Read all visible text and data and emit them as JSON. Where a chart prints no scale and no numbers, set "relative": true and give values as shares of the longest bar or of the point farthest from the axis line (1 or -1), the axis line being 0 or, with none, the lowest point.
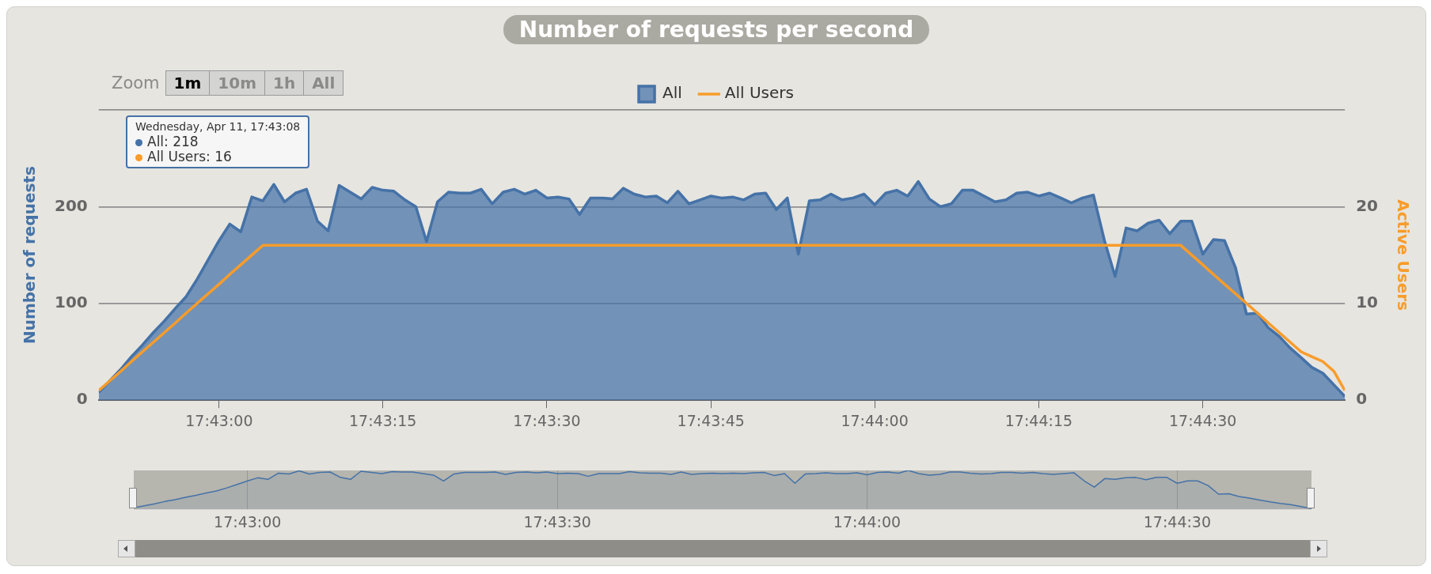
{
  "chart_data": [
    {
      "type": "area",
      "title": "Number of requests per second",
      "ylabel": "Number of requests",
      "y2label": "Active Users",
      "x": [
        17.71361,
        17.71389,
        17.71417,
        17.71444,
        17.71472,
        17.715,
        17.71528,
        17.71556,
        17.71583,
        17.71611,
        17.71639,
        17.71667,
        17.71694,
        17.71722,
        17.7175,
        17.71778,
        17.71806,
        17.71833,
        17.71861,
        17.71889,
        17.71917,
        17.71944,
        17.71972,
        17.72,
        17.72028,
        17.72056,
        17.72083,
        17.72111,
        17.72139,
        17.72167,
        17.72194,
        17.72222,
        17.7225,
        17.72278,
        17.72306,
        17.72333,
        17.72361,
        17.72389,
        17.72417,
        17.72444,
        17.72472,
        17.725,
        17.72528,
        17.72556,
        17.72583,
        17.72611,
        17.72639,
        17.72667,
        17.72694,
        17.72722,
        17.7275,
        17.72778,
        17.72806,
        17.72833,
        17.72861,
        17.72889,
        17.72917,
        17.72944,
        17.72972,
        17.73,
        17.73028,
        17.73056,
        17.73083,
        17.73111,
        17.73139,
        17.73167,
        17.73194,
        17.73222,
        17.7325,
        17.73278,
        17.73306,
        17.73333,
        17.73361,
        17.73389,
        17.73417,
        17.73444,
        17.73472,
        17.735,
        17.73528,
        17.73556,
        17.73583,
        17.73611,
        17.73639,
        17.73667,
        17.73694,
        17.73722,
        17.7375,
        17.73778,
        17.73806,
        17.73833,
        17.73861,
        17.73889,
        17.73917,
        17.73944,
        17.73972,
        17.74,
        17.74028,
        17.74056,
        17.74083,
        17.74111,
        17.74139,
        17.74167,
        17.74194,
        17.74222,
        17.7425,
        17.74278,
        17.74306,
        17.74333,
        17.74361,
        17.74389,
        17.74417,
        17.74444,
        17.74472,
        17.745,
        17.74528
      ],
      "xlim": [
        17.71361,
        17.74528
      ],
      "xticks": [
        {
          "value": 17.71667,
          "label": "17:43:00"
        },
        {
          "value": 17.72083,
          "label": "17:43:15"
        },
        {
          "value": 17.725,
          "label": "17:43:30"
        },
        {
          "value": 17.72917,
          "label": "17:43:45"
        },
        {
          "value": 17.73333,
          "label": "17:44:00"
        },
        {
          "value": 17.7375,
          "label": "17:44:15"
        },
        {
          "value": 17.74167,
          "label": "17:44:30"
        }
      ],
      "ylim": [
        0,
        300
      ],
      "yticks": [
        0,
        100,
        200,
        {
          "value": 300,
          "label": null
        }
      ],
      "y2lim": [
        0,
        30
      ],
      "y2ticks": [
        0,
        10,
        20,
        {
          "value": 30,
          "label": null
        }
      ],
      "series": [
        {
          "name": "All",
          "color": "#4572a7",
          "values": [
            8,
            20,
            32,
            45,
            57,
            70,
            82,
            95,
            107,
            125,
            145,
            165,
            182,
            174,
            210,
            206,
            223,
            205,
            214,
            218,
            185,
            175,
            222,
            215,
            208,
            220,
            217,
            216,
            207,
            200,
            164,
            205,
            215,
            214,
            214,
            218,
            203,
            215,
            218,
            213,
            217,
            209,
            210,
            208,
            192,
            209,
            209,
            208,
            219,
            213,
            210,
            211,
            204,
            216,
            203,
            207,
            211,
            209,
            210,
            207,
            213,
            214,
            197,
            209,
            151,
            206,
            207,
            213,
            207,
            209,
            213,
            202,
            214,
            217,
            211,
            226,
            208,
            200,
            203,
            217,
            217,
            211,
            205,
            207,
            214,
            215,
            211,
            214,
            209,
            204,
            209,
            212,
            165,
            128,
            178,
            175,
            183,
            186,
            172,
            185,
            185,
            151,
            166,
            165,
            137,
            89,
            90,
            75,
            66,
            54,
            44,
            34,
            28,
            16,
            4
          ]
        },
        {
          "name": "All Users",
          "type": "line",
          "axis": "y2",
          "color": "#f89c2a",
          "values": [
            1,
            2,
            3,
            4,
            5,
            6,
            7,
            8,
            9,
            10,
            11,
            12,
            13,
            14,
            15,
            16,
            16,
            16,
            16,
            16,
            16,
            16,
            16,
            16,
            16,
            16,
            16,
            16,
            16,
            16,
            16,
            16,
            16,
            16,
            16,
            16,
            16,
            16,
            16,
            16,
            16,
            16,
            16,
            16,
            16,
            16,
            16,
            16,
            16,
            16,
            16,
            16,
            16,
            16,
            16,
            16,
            16,
            16,
            16,
            16,
            16,
            16,
            16,
            16,
            16,
            16,
            16,
            16,
            16,
            16,
            16,
            16,
            16,
            16,
            16,
            16,
            16,
            16,
            16,
            16,
            16,
            16,
            16,
            16,
            16,
            16,
            16,
            16,
            16,
            16,
            16,
            16,
            16,
            16,
            16,
            16,
            16,
            16,
            16,
            16,
            15,
            14,
            13,
            12,
            11,
            10,
            9,
            8,
            7,
            6,
            5,
            4.5,
            4,
            3,
            1
          ]
        }
      ],
      "grid": "y",
      "legend": "top",
      "marker": "none",
      "line_style": "solid",
      "annotations": [
        "Wednesday, Apr 11, 17:43:08",
        "All: 218",
        "All Users: 16",
        "Zoom",
        "1m",
        "10m",
        "1h",
        "All"
      ]
    },
    {
      "type": "area",
      "x": [
        17.71361,
        17.71389,
        17.71417,
        17.71444,
        17.71472,
        17.715,
        17.71528,
        17.71556,
        17.71583,
        17.71611,
        17.71639,
        17.71667,
        17.71694,
        17.71722,
        17.7175,
        17.71778,
        17.71806,
        17.71833,
        17.71861,
        17.71889,
        17.71917,
        17.71944,
        17.71972,
        17.72,
        17.72028,
        17.72056,
        17.72083,
        17.72111,
        17.72139,
        17.72167,
        17.72194,
        17.72222,
        17.7225,
        17.72278,
        17.72306,
        17.72333,
        17.72361,
        17.72389,
        17.72417,
        17.72444,
        17.72472,
        17.725,
        17.72528,
        17.72556,
        17.72583,
        17.72611,
        17.72639,
        17.72667,
        17.72694,
        17.72722,
        17.7275,
        17.72778,
        17.72806,
        17.72833,
        17.72861,
        17.72889,
        17.72917,
        17.72944,
        17.72972,
        17.73,
        17.73028,
        17.73056,
        17.73083,
        17.73111,
        17.73139,
        17.73167,
        17.73194,
        17.73222,
        17.7325,
        17.73278,
        17.73306,
        17.73333,
        17.73361,
        17.73389,
        17.73417,
        17.73444,
        17.73472,
        17.735,
        17.73528,
        17.73556,
        17.73583,
        17.73611,
        17.73639,
        17.73667,
        17.73694,
        17.73722,
        17.7375,
        17.73778,
        17.73806,
        17.73833,
        17.73861,
        17.73889,
        17.73917,
        17.73944,
        17.73972,
        17.74,
        17.74028,
        17.74056,
        17.74083,
        17.74111,
        17.74139,
        17.74167,
        17.74194,
        17.74222,
        17.7425,
        17.74278,
        17.74306,
        17.74333,
        17.74361,
        17.74389,
        17.74417,
        17.74444,
        17.74472,
        17.745,
        17.74528
      ],
      "xlim": [
        17.71361,
        17.74528
      ],
      "xticks": [
        {
          "value": 17.71667,
          "label": "17:43:00"
        },
        {
          "value": 17.725,
          "label": "17:43:30"
        },
        {
          "value": 17.73333,
          "label": "17:44:00"
        },
        {
          "value": 17.74167,
          "label": "17:44:30"
        }
      ],
      "relative": true,
      "tick_labels": "x",
      "grid": "x",
      "marker": "none",
      "series": [
        {
          "color": "#4572a7",
          "values": [
            0.04,
            0.09,
            0.14,
            0.2,
            0.25,
            0.31,
            0.36,
            0.42,
            0.47,
            0.55,
            0.64,
            0.73,
            0.81,
            0.77,
            0.93,
            0.91,
            0.99,
            0.91,
            0.95,
            0.96,
            0.82,
            0.77,
            0.98,
            0.95,
            0.92,
            0.97,
            0.96,
            0.96,
            0.92,
            0.88,
            0.73,
            0.91,
            0.95,
            0.95,
            0.95,
            0.96,
            0.9,
            0.95,
            0.96,
            0.94,
            0.96,
            0.92,
            0.93,
            0.92,
            0.85,
            0.92,
            0.92,
            0.92,
            0.97,
            0.94,
            0.93,
            0.93,
            0.9,
            0.96,
            0.9,
            0.92,
            0.93,
            0.92,
            0.93,
            0.92,
            0.94,
            0.95,
            0.87,
            0.92,
            0.67,
            0.91,
            0.92,
            0.94,
            0.92,
            0.92,
            0.94,
            0.89,
            0.95,
            0.96,
            0.93,
            1,
            0.92,
            0.88,
            0.9,
            0.96,
            0.96,
            0.93,
            0.91,
            0.92,
            0.95,
            0.95,
            0.93,
            0.95,
            0.92,
            0.9,
            0.92,
            0.94,
            0.73,
            0.57,
            0.79,
            0.77,
            0.81,
            0.82,
            0.76,
            0.82,
            0.82,
            0.67,
            0.73,
            0.73,
            0.61,
            0.39,
            0.4,
            0.33,
            0.29,
            0.24,
            0.19,
            0.15,
            0.12,
            0.07,
            0.02
          ]
        }
      ]
    }
  ]
}
